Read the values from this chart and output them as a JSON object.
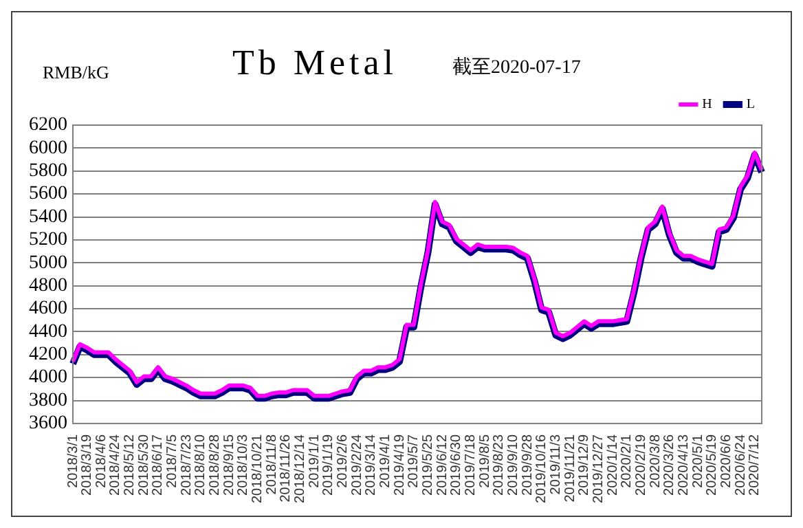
{
  "chart_data": {
    "type": "line",
    "title": "Tb Metal",
    "subtitle": "截至2020-07-17",
    "ylabel": "RMB/kG",
    "categories": [
      "2018/3/1",
      null,
      "2018/3/19",
      null,
      "2018/4/6",
      null,
      "2018/4/24",
      null,
      "2018/5/12",
      null,
      "2018/5/30",
      null,
      "2018/6/17",
      null,
      "2018/7/5",
      null,
      "2018/7/23",
      null,
      "2018/8/10",
      null,
      "2018/8/28",
      null,
      "2018/9/15",
      null,
      "2018/10/3",
      null,
      "2018/10/21",
      null,
      "2018/11/8",
      null,
      "2018/11/26",
      null,
      "2018/12/14",
      null,
      "2019/1/1",
      null,
      "2019/1/19",
      null,
      "2019/2/6",
      null,
      "2019/2/24",
      null,
      "2019/3/14",
      null,
      "2019/4/1",
      null,
      "2019/4/19",
      null,
      "2019/5/7",
      null,
      "2019/5/25",
      null,
      "2019/6/12",
      null,
      "2019/6/30",
      null,
      "2019/7/18",
      null,
      "2019/8/5",
      null,
      "2019/8/23",
      null,
      "2019/9/10",
      null,
      "2019/9/28",
      null,
      "2019/10/16",
      null,
      "2019/11/3",
      null,
      "2019/11/21",
      null,
      "2019/12/9",
      null,
      "2019/12/27",
      null,
      "2020/1/14",
      null,
      "2020/2/1",
      null,
      "2020/2/19",
      null,
      "2020/3/8",
      null,
      "2020/3/26",
      null,
      "2020/4/13",
      null,
      "2020/5/1",
      null,
      "2020/5/19",
      null,
      "2020/6/6",
      null,
      "2020/6/24",
      null,
      "2020/7/12",
      null
    ],
    "series": [
      {
        "name": "L",
        "color": "#000080",
        "values": [
          4120,
          4270,
          4240,
          4200,
          4200,
          4200,
          4140,
          4090,
          4040,
          3940,
          3990,
          3990,
          4070,
          3990,
          3970,
          3940,
          3910,
          3870,
          3840,
          3840,
          3840,
          3870,
          3910,
          3910,
          3910,
          3890,
          3820,
          3820,
          3840,
          3850,
          3850,
          3870,
          3870,
          3870,
          3820,
          3820,
          3820,
          3840,
          3860,
          3870,
          3990,
          4040,
          4040,
          4070,
          4070,
          4090,
          4140,
          4440,
          4440,
          4790,
          5090,
          5510,
          5340,
          5310,
          5190,
          5140,
          5090,
          5140,
          5120,
          5120,
          5120,
          5120,
          5110,
          5070,
          5040,
          4840,
          4590,
          4570,
          4370,
          4340,
          4370,
          4420,
          4470,
          4430,
          4470,
          4470,
          4470,
          4480,
          4490,
          4740,
          5040,
          5290,
          5340,
          5470,
          5240,
          5090,
          5040,
          5040,
          5010,
          4990,
          4970,
          5270,
          5290,
          5390,
          5640,
          5740,
          5940,
          5790
        ]
      },
      {
        "name": "H",
        "color": "#ff00ff",
        "values": [
          4140,
          4290,
          4260,
          4220,
          4220,
          4220,
          4160,
          4110,
          4060,
          3960,
          4010,
          4010,
          4090,
          4010,
          3990,
          3960,
          3930,
          3890,
          3860,
          3860,
          3860,
          3890,
          3930,
          3930,
          3930,
          3910,
          3840,
          3840,
          3860,
          3870,
          3870,
          3890,
          3890,
          3890,
          3840,
          3840,
          3840,
          3860,
          3880,
          3890,
          4010,
          4060,
          4060,
          4090,
          4090,
          4110,
          4160,
          4460,
          4460,
          4810,
          5110,
          5530,
          5360,
          5330,
          5210,
          5160,
          5110,
          5160,
          5140,
          5140,
          5140,
          5140,
          5130,
          5090,
          5060,
          4860,
          4610,
          4590,
          4390,
          4360,
          4390,
          4440,
          4490,
          4450,
          4490,
          4490,
          4490,
          4500,
          4510,
          4760,
          5060,
          5310,
          5360,
          5490,
          5260,
          5110,
          5060,
          5060,
          5030,
          5010,
          4990,
          5290,
          5310,
          5410,
          5660,
          5760,
          5960,
          5810
        ]
      }
    ],
    "ylim": [
      3600,
      6200
    ],
    "yticks": [
      3600,
      3800,
      4000,
      4200,
      4400,
      4600,
      4800,
      5000,
      5200,
      5400,
      5600,
      5800,
      6000,
      6200
    ],
    "grid": "y",
    "legend": "top right",
    "marker": "none"
  }
}
